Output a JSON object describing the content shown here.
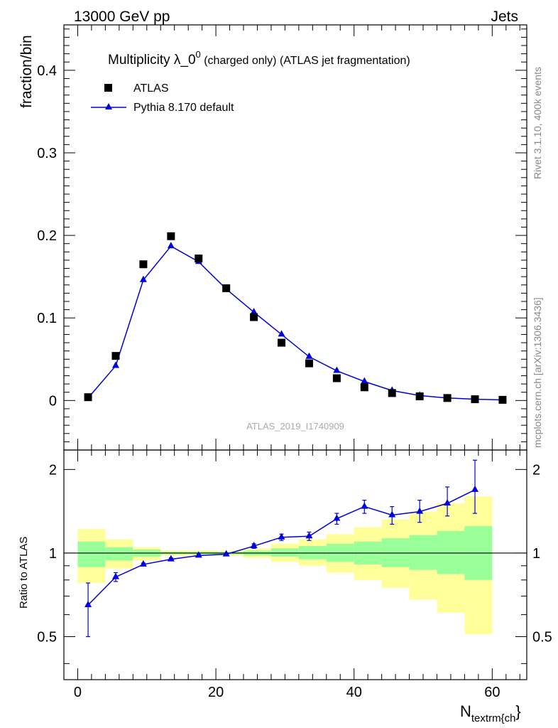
{
  "header": {
    "energy_label": "13000 GeV pp",
    "process_label": "Jets"
  },
  "side_labels": {
    "rivet": "Rivet 3.1.10,  400k events",
    "source": "mcplots.cern.ch [arXiv:1306.3436]"
  },
  "main_panel": {
    "title_prefix": "Multiplicity λ_0",
    "title_superscript": "0",
    "title_suffix": " (charged only) (ATLAS jet fragmentation)",
    "watermark": "ATLAS_2019_I1740909",
    "y_label": "fraction/bin",
    "legend": {
      "data_label": "ATLAS",
      "mc_label": "Pythia 8.170 default"
    },
    "y_ticks": [
      {
        "value": 0,
        "label": "0"
      },
      {
        "value": 0.1,
        "label": "0.1"
      },
      {
        "value": 0.2,
        "label": "0.2"
      },
      {
        "value": 0.3,
        "label": "0.3"
      },
      {
        "value": 0.4,
        "label": "0.4"
      }
    ]
  },
  "ratio_panel": {
    "y_label": "Ratio to ATLAS",
    "y_ticks": [
      {
        "value": 0.5,
        "label": "0.5"
      },
      {
        "value": 1,
        "label": "1"
      },
      {
        "value": 2,
        "label": "2"
      }
    ]
  },
  "x_axis": {
    "label_main": "N",
    "label_sub": "textrm{ch",
    "label_close": "}",
    "ticks": [
      {
        "value": 0,
        "label": "0"
      },
      {
        "value": 20,
        "label": "20"
      },
      {
        "value": 40,
        "label": "40"
      },
      {
        "value": 60,
        "label": "60"
      }
    ]
  },
  "colors": {
    "data": "#000000",
    "mc": "#0000dd",
    "band_inner": "#99ff99",
    "band_outer": "#ffff99"
  },
  "chart_data": {
    "type": "scatter",
    "xlim": [
      -2,
      65
    ],
    "main_ylim": [
      -0.06,
      0.455
    ],
    "ratio_ylim": [
      0.35,
      2.35
    ],
    "ratio_log_scale": true,
    "x": [
      1.5,
      5.5,
      9.5,
      13.5,
      17.5,
      21.5,
      25.5,
      29.5,
      33.5,
      37.5,
      41.5,
      45.5,
      49.5,
      53.5,
      57.5,
      61.5
    ],
    "series": [
      {
        "name": "ATLAS",
        "marker": "square",
        "values": [
          0.004,
          0.054,
          0.165,
          0.199,
          0.172,
          0.136,
          0.101,
          0.07,
          0.045,
          0.027,
          0.016,
          0.009,
          0.005,
          0.003,
          0.0015,
          0.0008
        ]
      },
      {
        "name": "Pythia 8.170 default",
        "marker": "triangle",
        "values": [
          0.003,
          0.042,
          0.146,
          0.187,
          0.168,
          0.135,
          0.107,
          0.08,
          0.053,
          0.036,
          0.023,
          0.012,
          0.006,
          0.003,
          0.0016,
          0.0007
        ]
      }
    ],
    "ratio": {
      "x": [
        1.5,
        5.5,
        9.5,
        13.5,
        17.5,
        21.5,
        25.5,
        29.5,
        33.5,
        37.5,
        41.5,
        45.5,
        49.5,
        53.5,
        57.5
      ],
      "values": [
        0.65,
        0.82,
        0.91,
        0.95,
        0.98,
        0.99,
        1.06,
        1.14,
        1.15,
        1.33,
        1.47,
        1.37,
        1.41,
        1.51,
        1.69
      ],
      "err_low": [
        0.15,
        0.03,
        0.01,
        0.01,
        0.01,
        0.01,
        0.02,
        0.03,
        0.04,
        0.06,
        0.08,
        0.1,
        0.12,
        0.15,
        0.3
      ],
      "err_high": [
        0.13,
        0.03,
        0.01,
        0.01,
        0.01,
        0.01,
        0.02,
        0.03,
        0.04,
        0.06,
        0.08,
        0.1,
        0.14,
        0.22,
        0.47
      ]
    },
    "uncertainty_bands": {
      "bin_edges": [
        0,
        4,
        8,
        12,
        16,
        20,
        24,
        28,
        32,
        36,
        40,
        44,
        48,
        52,
        56,
        60
      ],
      "inner_low": [
        0.89,
        0.94,
        0.97,
        0.99,
        0.99,
        0.99,
        0.98,
        0.97,
        0.95,
        0.93,
        0.91,
        0.89,
        0.87,
        0.84,
        0.8
      ],
      "inner_high": [
        1.1,
        1.05,
        1.03,
        1.01,
        1.01,
        1.01,
        1.02,
        1.04,
        1.06,
        1.08,
        1.1,
        1.13,
        1.16,
        1.2,
        1.25
      ],
      "outer_low": [
        0.78,
        0.88,
        0.94,
        0.98,
        0.98,
        0.98,
        0.96,
        0.93,
        0.9,
        0.85,
        0.8,
        0.75,
        0.68,
        0.61,
        0.51
      ],
      "outer_high": [
        1.22,
        1.12,
        1.05,
        1.02,
        1.02,
        1.02,
        1.04,
        1.08,
        1.12,
        1.17,
        1.24,
        1.32,
        1.41,
        1.51,
        1.6
      ]
    }
  }
}
